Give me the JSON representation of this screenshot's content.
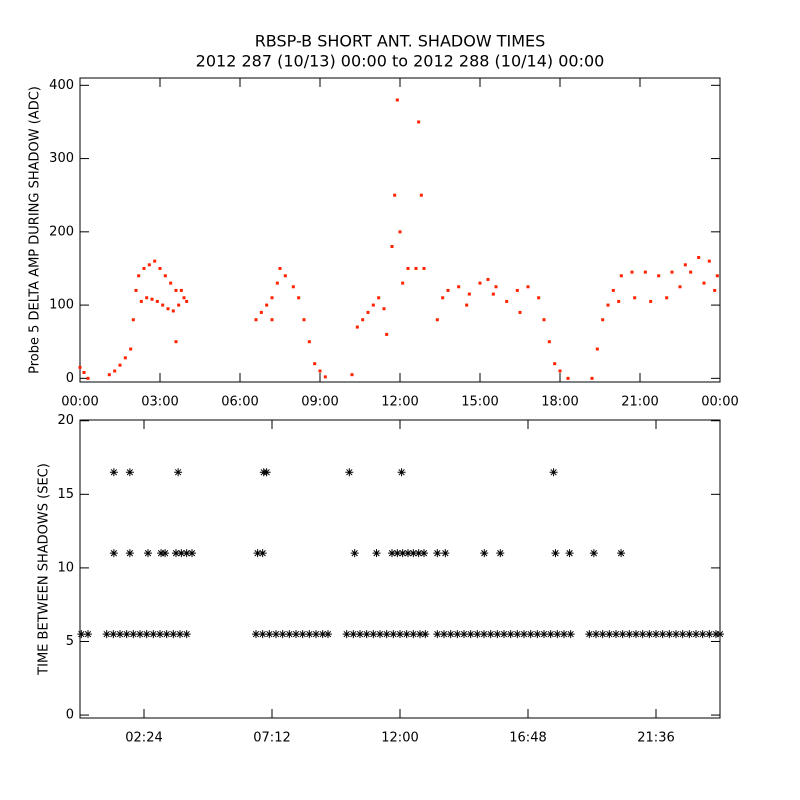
{
  "chart_data": [
    {
      "type": "scatter",
      "title": "RBSP-B SHORT ANT. SHADOW TIMES",
      "subtitle": "2012 287 (10/13) 00:00 to 2012 288 (10/14) 00:00",
      "ylabel": "Probe 5 DELTA AMP DURING SHADOW (ADC)",
      "xlim": [
        0,
        24
      ],
      "ylim": [
        -5,
        410
      ],
      "xticks": [
        {
          "value": 0,
          "label": "00:00"
        },
        {
          "value": 3,
          "label": "03:00"
        },
        {
          "value": 6,
          "label": "06:00"
        },
        {
          "value": 9,
          "label": "09:00"
        },
        {
          "value": 12,
          "label": "12:00"
        },
        {
          "value": 15,
          "label": "15:00"
        },
        {
          "value": 18,
          "label": "18:00"
        },
        {
          "value": 21,
          "label": "21:00"
        },
        {
          "value": 24,
          "label": "00:00"
        }
      ],
      "yticks": [
        0,
        100,
        200,
        300,
        400
      ],
      "series": [
        {
          "color": "#ff2200",
          "marker": "dot",
          "x": [
            0.0,
            0.15,
            0.3,
            1.1,
            1.3,
            1.5,
            1.7,
            1.9,
            2.0,
            2.1,
            2.2,
            2.4,
            2.6,
            2.8,
            3.0,
            3.2,
            3.4,
            3.6,
            2.3,
            2.5,
            2.7,
            2.9,
            3.1,
            3.3,
            3.5,
            3.6,
            3.7,
            3.8,
            3.9,
            4.0,
            6.6,
            6.8,
            7.0,
            7.2,
            7.2,
            7.4,
            7.5,
            7.7,
            8.0,
            8.2,
            8.4,
            8.6,
            8.8,
            9.0,
            9.2,
            10.2,
            10.4,
            10.6,
            10.8,
            11.0,
            11.2,
            11.4,
            11.5,
            11.7,
            11.8,
            11.9,
            12.0,
            12.1,
            12.3,
            12.6,
            12.7,
            12.8,
            12.9,
            13.4,
            13.6,
            13.8,
            14.2,
            14.6,
            15.0,
            15.3,
            15.6,
            16.0,
            16.4,
            16.8,
            17.2,
            17.4,
            17.6,
            17.8,
            18.0,
            18.3,
            14.5,
            15.5,
            16.5,
            19.2,
            19.4,
            19.6,
            19.8,
            20.0,
            20.3,
            20.7,
            21.2,
            21.7,
            22.2,
            22.7,
            23.2,
            23.6,
            23.9,
            20.2,
            20.8,
            21.4,
            22.0,
            22.5,
            22.9,
            23.4,
            23.8
          ],
          "values": [
            15,
            8,
            0,
            5,
            10,
            18,
            28,
            40,
            80,
            120,
            140,
            150,
            155,
            160,
            150,
            140,
            130,
            120,
            105,
            110,
            108,
            105,
            100,
            95,
            92,
            50,
            100,
            120,
            110,
            105,
            80,
            90,
            100,
            80,
            110,
            130,
            150,
            140,
            125,
            110,
            80,
            50,
            20,
            10,
            2,
            5,
            70,
            80,
            90,
            100,
            110,
            95,
            60,
            180,
            250,
            380,
            200,
            130,
            150,
            150,
            350,
            250,
            150,
            80,
            110,
            120,
            125,
            115,
            130,
            135,
            125,
            105,
            120,
            125,
            110,
            80,
            50,
            20,
            10,
            0,
            100,
            115,
            90,
            0,
            40,
            80,
            100,
            120,
            140,
            145,
            145,
            140,
            145,
            155,
            165,
            160,
            140,
            105,
            110,
            105,
            110,
            125,
            145,
            130,
            120
          ]
        }
      ]
    },
    {
      "type": "scatter",
      "ylabel": "TIME BETWEEN SHADOWS (SEC)",
      "xlim": [
        0,
        24
      ],
      "ylim": [
        -0.2,
        20.05
      ],
      "xticks": [
        {
          "value": 2.4,
          "label": "02:24"
        },
        {
          "value": 7.2,
          "label": "07:12"
        },
        {
          "value": 12,
          "label": "12:00"
        },
        {
          "value": 16.8,
          "label": "16:48"
        },
        {
          "value": 21.6,
          "label": "21:36"
        }
      ],
      "yticks": [
        0,
        5,
        10,
        15,
        20
      ],
      "series": [
        {
          "color": "#000000",
          "marker": "asterisk",
          "x": [
            0.05,
            0.3,
            1.0,
            1.25,
            1.5,
            1.75,
            2.0,
            2.25,
            2.5,
            2.75,
            3.0,
            3.25,
            3.5,
            3.75,
            4.0,
            6.6,
            6.85,
            7.1,
            7.35,
            7.6,
            7.85,
            8.1,
            8.35,
            8.6,
            8.85,
            9.1,
            9.3,
            10.0,
            10.25,
            10.5,
            10.75,
            11.0,
            11.25,
            11.5,
            11.75,
            12.0,
            12.25,
            12.5,
            12.75,
            12.95,
            13.4,
            13.65,
            13.9,
            14.15,
            14.4,
            14.65,
            14.9,
            15.15,
            15.4,
            15.65,
            15.9,
            16.15,
            16.4,
            16.65,
            16.9,
            17.15,
            17.4,
            17.65,
            17.9,
            18.15,
            18.4,
            19.1,
            19.35,
            19.6,
            19.85,
            20.1,
            20.35,
            20.6,
            20.85,
            21.1,
            21.35,
            21.6,
            21.85,
            22.1,
            22.35,
            22.6,
            22.85,
            23.1,
            23.35,
            23.6,
            23.85,
            24.0
          ],
          "values": [
            5.5,
            5.5,
            5.5,
            5.5,
            5.5,
            5.5,
            5.5,
            5.5,
            5.5,
            5.5,
            5.5,
            5.5,
            5.5,
            5.5,
            5.5,
            5.5,
            5.5,
            5.5,
            5.5,
            5.5,
            5.5,
            5.5,
            5.5,
            5.5,
            5.5,
            5.5,
            5.5,
            5.5,
            5.5,
            5.5,
            5.5,
            5.5,
            5.5,
            5.5,
            5.5,
            5.5,
            5.5,
            5.5,
            5.5,
            5.5,
            5.5,
            5.5,
            5.5,
            5.5,
            5.5,
            5.5,
            5.5,
            5.5,
            5.5,
            5.5,
            5.5,
            5.5,
            5.5,
            5.5,
            5.5,
            5.5,
            5.5,
            5.5,
            5.5,
            5.5,
            5.5,
            5.5,
            5.5,
            5.5,
            5.5,
            5.5,
            5.5,
            5.5,
            5.5,
            5.5,
            5.5,
            5.5,
            5.5,
            5.5,
            5.5,
            5.5,
            5.5,
            5.5,
            5.5,
            5.5,
            5.5,
            5.5
          ]
        },
        {
          "color": "#000000",
          "marker": "asterisk",
          "x": [
            1.27,
            1.87,
            2.55,
            3.04,
            3.19,
            3.6,
            3.8,
            4.0,
            4.2,
            6.66,
            6.85,
            10.3,
            11.12,
            11.7,
            11.9,
            12.1,
            12.3,
            12.5,
            12.7,
            12.9,
            13.4,
            13.7,
            15.16,
            15.76,
            17.83,
            18.36,
            19.27,
            20.29
          ],
          "values": [
            11,
            11,
            11,
            11,
            11,
            11,
            11,
            11,
            11,
            11,
            11,
            11,
            11,
            11,
            11,
            11,
            11,
            11,
            11,
            11,
            11,
            11,
            11,
            11,
            11,
            11,
            11,
            11
          ]
        },
        {
          "color": "#000000",
          "marker": "asterisk",
          "x": [
            1.27,
            1.87,
            3.68,
            6.89,
            7.0,
            10.1,
            12.06,
            17.76
          ],
          "values": [
            16.5,
            16.5,
            16.5,
            16.5,
            16.5,
            16.5,
            16.5,
            16.5
          ]
        }
      ]
    }
  ]
}
